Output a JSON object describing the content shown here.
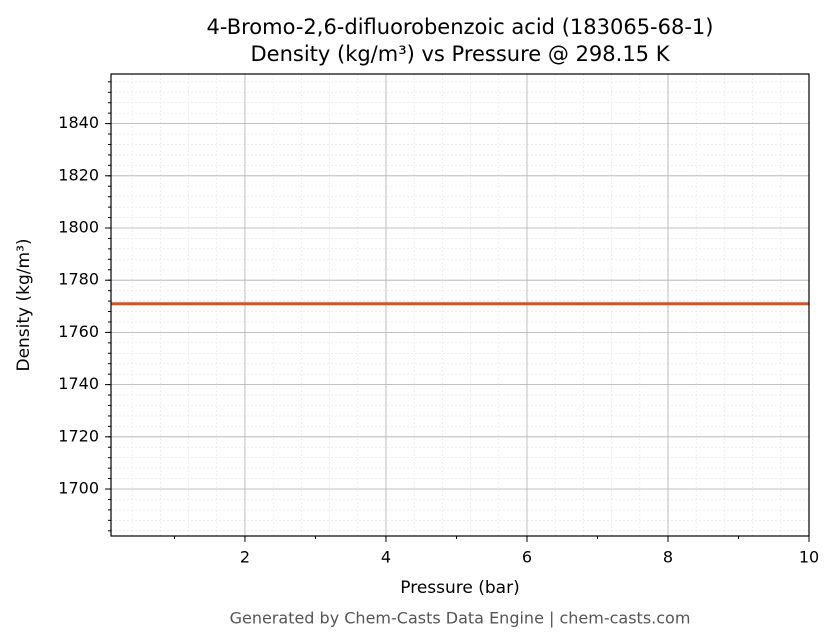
{
  "chart_data": {
    "type": "line",
    "title": "4-Bromo-2,6-difluorobenzoic acid (183065-68-1)",
    "subtitle": "Density (kg/m³) vs Pressure @ 298.15 K",
    "x_label": "Pressure (bar)",
    "y_label": "Density (kg/m³)",
    "footer": "Generated by Chem-Casts Data Engine | chem-casts.com",
    "x": [
      0.1,
      10
    ],
    "values": [
      1771,
      1771
    ],
    "color": "#c8572a",
    "xlim": [
      0.1,
      10
    ],
    "xticks": [
      2,
      4,
      6,
      8,
      10
    ],
    "ylim": [
      1682,
      1859
    ],
    "yticks": [
      1700,
      1720,
      1740,
      1760,
      1780,
      1800,
      1820,
      1840
    ],
    "grid": true
  }
}
